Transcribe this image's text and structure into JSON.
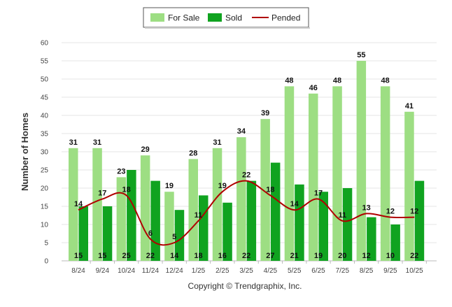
{
  "chart_data": {
    "type": "bar",
    "title": "",
    "xlabel": "",
    "ylabel": "Number of Homes",
    "ylim": [
      0,
      60
    ],
    "ytick_step": 5,
    "grid": true,
    "legend_position": "top-center",
    "categories": [
      "8/24",
      "9/24",
      "10/24",
      "11/24",
      "12/24",
      "1/25",
      "2/25",
      "3/25",
      "4/25",
      "5/25",
      "6/25",
      "7/25",
      "8/25",
      "9/25",
      "10/25"
    ],
    "series": [
      {
        "name": "For Sale",
        "kind": "bar",
        "color": "#9dde83",
        "values": [
          31,
          31,
          23,
          29,
          19,
          28,
          31,
          34,
          39,
          48,
          46,
          48,
          55,
          48,
          41
        ]
      },
      {
        "name": "Sold",
        "kind": "bar",
        "color": "#10a320",
        "values": [
          15,
          15,
          25,
          22,
          14,
          18,
          16,
          22,
          27,
          21,
          19,
          20,
          12,
          10,
          22
        ]
      },
      {
        "name": "Pended",
        "kind": "line",
        "color": "#b00000",
        "values": [
          14,
          17,
          18,
          6,
          5,
          11,
          19,
          22,
          18,
          14,
          17,
          11,
          13,
          12,
          12
        ]
      }
    ],
    "credit": "Copyright © Trendgraphix, Inc."
  }
}
